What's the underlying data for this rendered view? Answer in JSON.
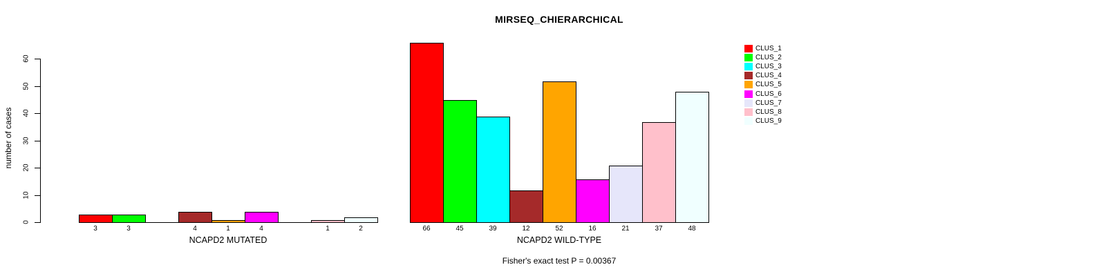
{
  "chart_data": {
    "type": "bar",
    "title": "MIRSEQ_CHIERARCHICAL",
    "ylabel": "number of cases",
    "xlabel": "",
    "ylim": [
      0,
      60
    ],
    "yticks": [
      0,
      10,
      20,
      30,
      40,
      50,
      60
    ],
    "grid": false,
    "legend_position": "right",
    "legend": [
      {
        "label": "CLUS_1",
        "color": "#FF0000"
      },
      {
        "label": "CLUS_2",
        "color": "#00FF00"
      },
      {
        "label": "CLUS_3",
        "color": "#00FFFF"
      },
      {
        "label": "CLUS_4",
        "color": "#A52A2A"
      },
      {
        "label": "CLUS_5",
        "color": "#FFA500"
      },
      {
        "label": "CLUS_6",
        "color": "#FF00FF"
      },
      {
        "label": "CLUS_7",
        "color": "#E6E6FA"
      },
      {
        "label": "CLUS_8",
        "color": "#FFC0CB"
      },
      {
        "label": "CLUS_9",
        "color": "#F0FFFF"
      }
    ],
    "groups": [
      {
        "label": "NCAPD2 MUTATED",
        "values": [
          3,
          3,
          0,
          4,
          1,
          4,
          0,
          1,
          2
        ]
      },
      {
        "label": "NCAPD2 WILD-TYPE",
        "values": [
          66,
          45,
          39,
          12,
          52,
          16,
          21,
          37,
          48
        ]
      }
    ],
    "annotation": "Fisher's exact test P = 0.00367"
  }
}
